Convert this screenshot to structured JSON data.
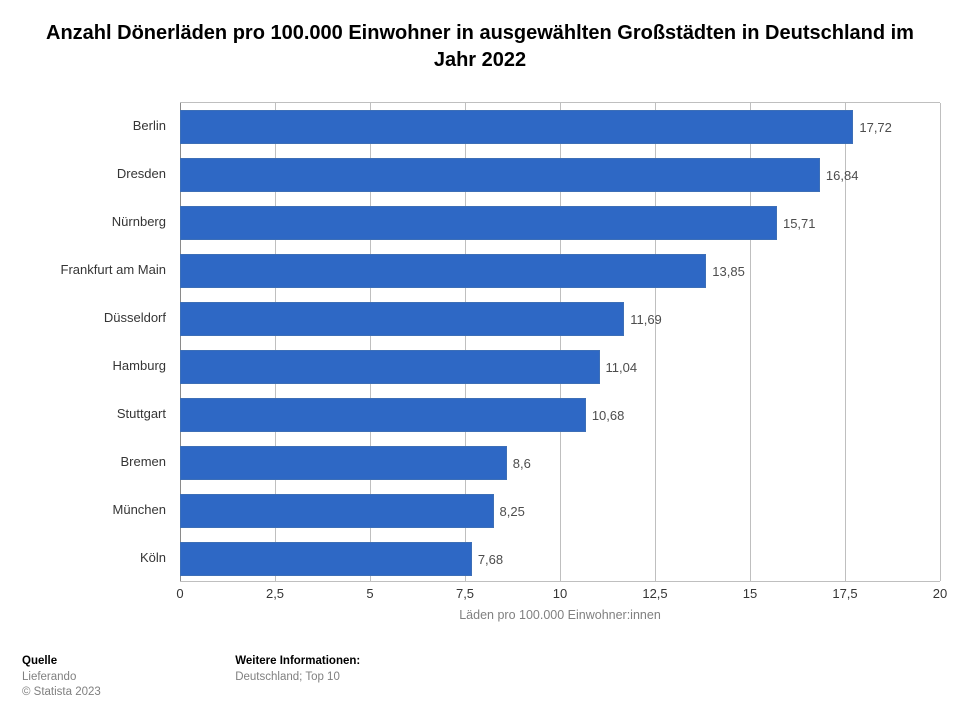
{
  "title": "Anzahl Dönerläden pro 100.000 Einwohner in ausgewählten Großstädten in Deutschland im Jahr 2022",
  "chart": {
    "type": "bar-horizontal",
    "x_axis": {
      "min": 0,
      "max": 20,
      "tick_step": 2.5,
      "ticks": [
        "0",
        "2,5",
        "5",
        "7,5",
        "10",
        "12,5",
        "15",
        "17,5",
        "20"
      ],
      "title": "Läden pro 100.000 Einwohner:innen"
    },
    "bar_color": "#2e68c5",
    "bar_border": "#3d6fb7",
    "grid_color": "#bfbfbf",
    "axis_color": "#8a8a8a",
    "label_fontsize": 13,
    "title_fontsize": 20,
    "bars": [
      {
        "category": "Berlin",
        "value": 17.72,
        "label": "17,72"
      },
      {
        "category": "Dresden",
        "value": 16.84,
        "label": "16,84"
      },
      {
        "category": "Nürnberg",
        "value": 15.71,
        "label": "15,71"
      },
      {
        "category": "Frankfurt am Main",
        "value": 13.85,
        "label": "13,85"
      },
      {
        "category": "Düsseldorf",
        "value": 11.69,
        "label": "11,69"
      },
      {
        "category": "Hamburg",
        "value": 11.04,
        "label": "11,04"
      },
      {
        "category": "Stuttgart",
        "value": 10.68,
        "label": "10,68"
      },
      {
        "category": "Bremen",
        "value": 8.6,
        "label": "8,6"
      },
      {
        "category": "München",
        "value": 8.25,
        "label": "8,25"
      },
      {
        "category": "Köln",
        "value": 7.68,
        "label": "7,68"
      }
    ]
  },
  "footer": {
    "source_label": "Quelle",
    "source_text": "Lieferando",
    "copyright": "© Statista 2023",
    "info_label": "Weitere Informationen:",
    "info_text": "Deutschland; Top 10"
  }
}
